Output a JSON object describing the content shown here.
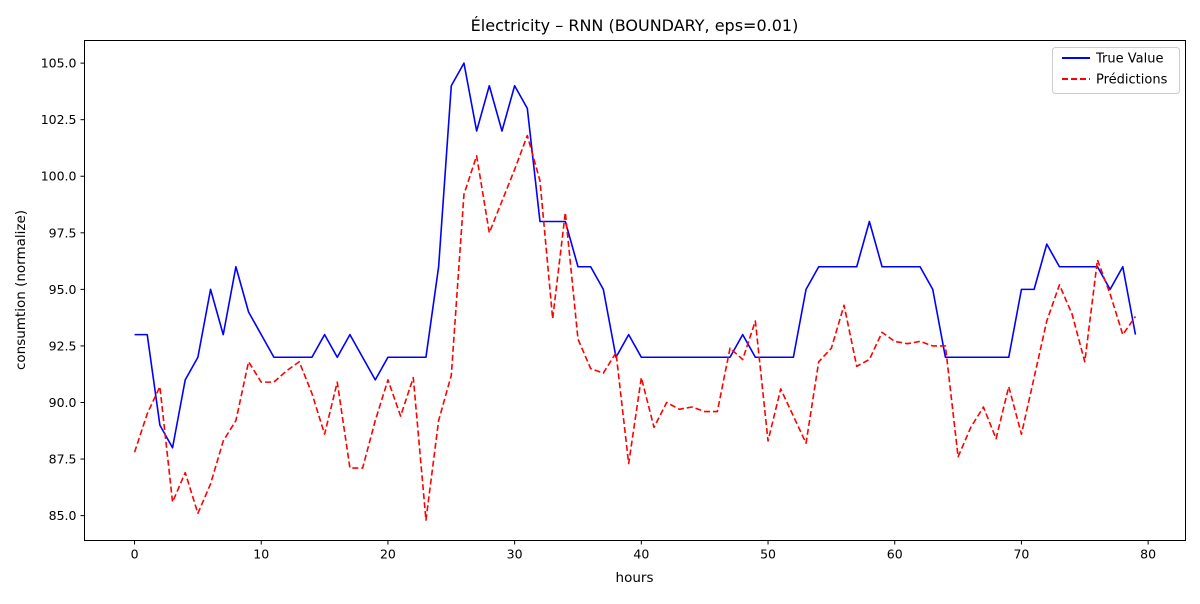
{
  "chart_data": {
    "type": "line",
    "title": "Électricity – RNN (BOUNDARY, eps=0.01)",
    "xlabel": "hours",
    "ylabel": "consumtion (normalize)",
    "xlim": [
      -3.95,
      82.95
    ],
    "ylim": [
      83.9,
      106.0
    ],
    "xticks": [
      0,
      10,
      20,
      30,
      40,
      50,
      60,
      70,
      80
    ],
    "xtick_labels": [
      "0",
      "10",
      "20",
      "30",
      "40",
      "50",
      "60",
      "70",
      "80"
    ],
    "yticks": [
      85.0,
      87.5,
      90.0,
      92.5,
      95.0,
      97.5,
      100.0,
      102.5,
      105.0
    ],
    "ytick_labels": [
      "85.0",
      "87.5",
      "90.0",
      "92.5",
      "95.0",
      "97.5",
      "100.0",
      "102.5",
      "105.0"
    ],
    "grid": false,
    "legend": "top-right",
    "x": [
      0,
      1,
      2,
      3,
      4,
      5,
      6,
      7,
      8,
      9,
      10,
      11,
      12,
      13,
      14,
      15,
      16,
      17,
      18,
      19,
      20,
      21,
      22,
      23,
      24,
      25,
      26,
      27,
      28,
      29,
      30,
      31,
      32,
      33,
      34,
      35,
      36,
      37,
      38,
      39,
      40,
      41,
      42,
      43,
      44,
      45,
      46,
      47,
      48,
      49,
      50,
      51,
      52,
      53,
      54,
      55,
      56,
      57,
      58,
      59,
      60,
      61,
      62,
      63,
      64,
      65,
      66,
      67,
      68,
      69,
      70,
      71,
      72,
      73,
      74,
      75,
      76,
      77,
      78,
      79
    ],
    "series": [
      {
        "name": "True Value",
        "color": "#0000ff",
        "style": "solid",
        "values": [
          93,
          93,
          89,
          88,
          91,
          92,
          95,
          93,
          96,
          94,
          93,
          92,
          92,
          92,
          92,
          93,
          92,
          93,
          92,
          91,
          92,
          92,
          92,
          92,
          96,
          104,
          105,
          102,
          104,
          102,
          104,
          103,
          98,
          98,
          98,
          96,
          96,
          95,
          92,
          93,
          92,
          92,
          92,
          92,
          92,
          92,
          92,
          92,
          93,
          92,
          92,
          92,
          92,
          95,
          96,
          96,
          96,
          96,
          98,
          96,
          96,
          96,
          96,
          95,
          92,
          92,
          92,
          92,
          92,
          92,
          95,
          95,
          97,
          96,
          96,
          96,
          96,
          95,
          96,
          93
        ]
      },
      {
        "name": "Prédictions",
        "color": "#ff0000",
        "style": "dashed",
        "values": [
          87.8,
          89.5,
          90.7,
          85.6,
          86.9,
          85.1,
          86.4,
          88.3,
          89.2,
          91.8,
          90.9,
          90.9,
          91.4,
          91.8,
          90.4,
          88.6,
          90.9,
          87.1,
          87.1,
          89.2,
          91.0,
          89.4,
          91.1,
          84.8,
          89.2,
          91.2,
          99.2,
          100.9,
          97.5,
          98.9,
          100.3,
          101.8,
          99.8,
          93.7,
          98.4,
          92.8,
          91.5,
          91.3,
          92.2,
          87.3,
          91.1,
          88.9,
          90.0,
          89.7,
          89.8,
          89.6,
          89.6,
          92.4,
          91.9,
          93.6,
          88.3,
          90.6,
          89.4,
          88.2,
          91.8,
          92.4,
          94.3,
          91.6,
          91.9,
          93.1,
          92.7,
          92.6,
          92.7,
          92.5,
          92.5,
          87.6,
          88.9,
          89.8,
          88.4,
          90.7,
          88.6,
          91.1,
          93.6,
          95.2,
          93.9,
          91.8,
          96.3,
          94.8,
          93.0,
          93.8
        ]
      }
    ]
  }
}
